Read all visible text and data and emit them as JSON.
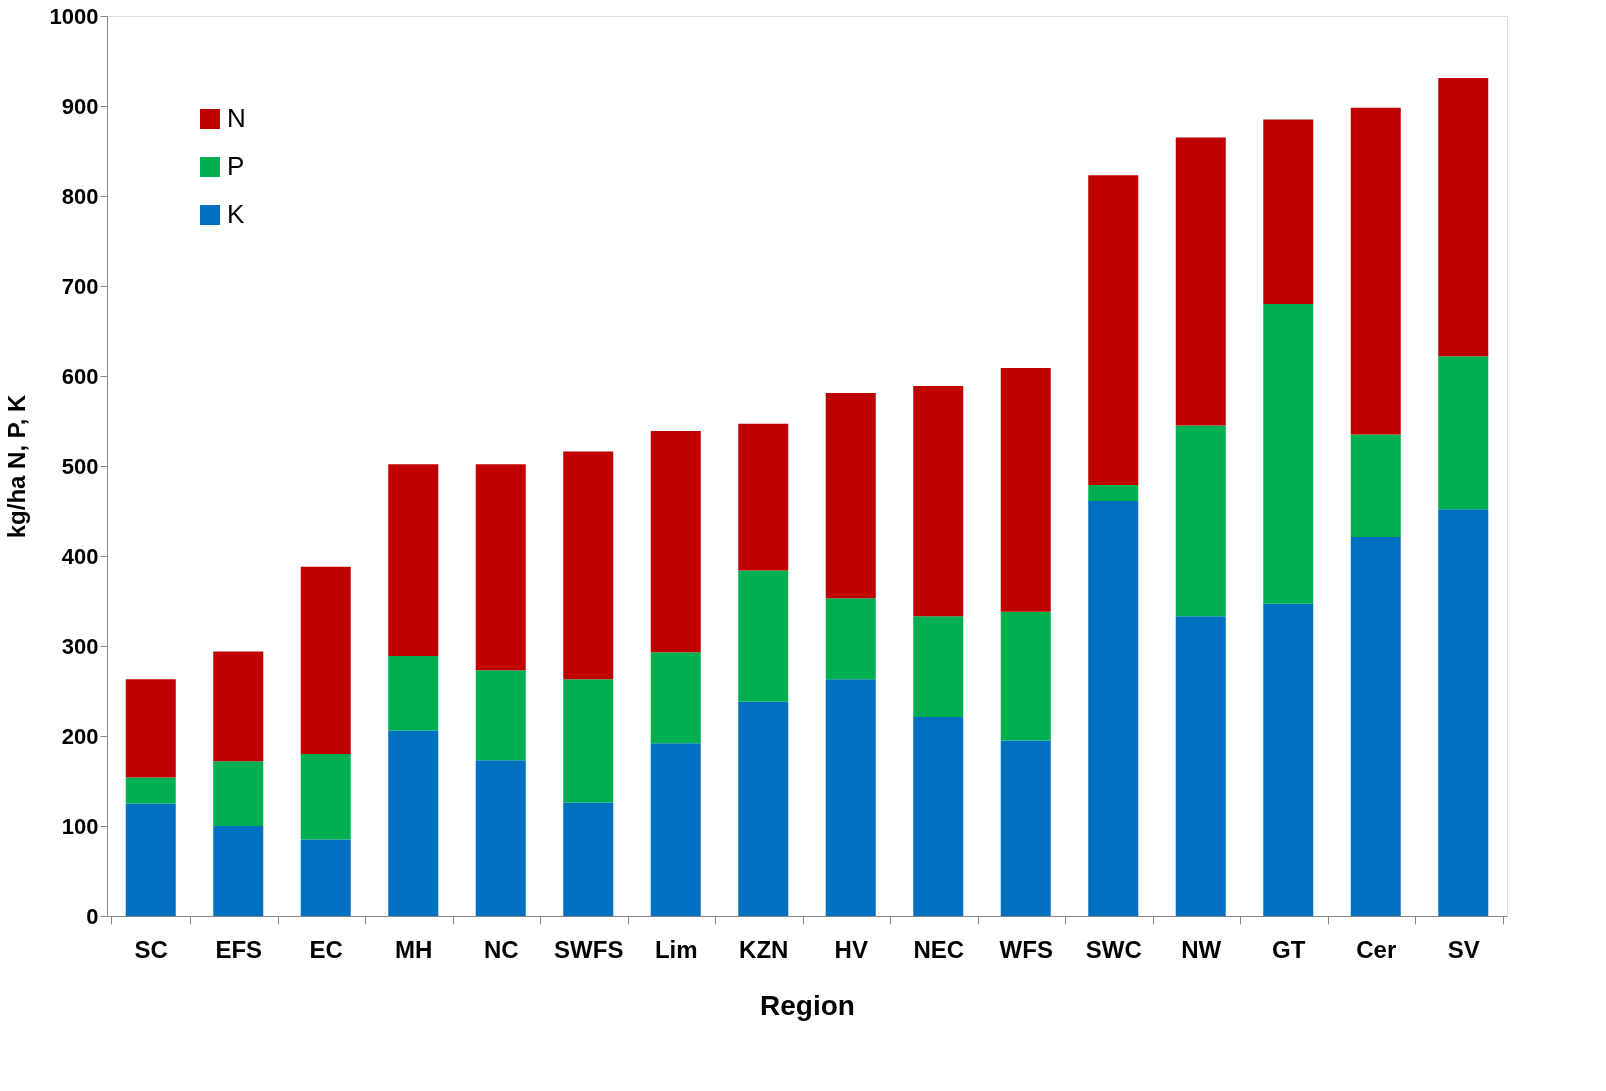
{
  "chart_data": {
    "type": "bar",
    "stacked": true,
    "xlabel": "Region",
    "ylabel": "kg/ha N, P, K",
    "categories": [
      "SC",
      "EFS",
      "EC",
      "MH",
      "NC",
      "SWFS",
      "Lim",
      "KZN",
      "HV",
      "NEC",
      "WFS",
      "SWC",
      "NW",
      "GT",
      "Cer",
      "SV"
    ],
    "series": [
      {
        "name": "K",
        "color": "#0070c0",
        "values": [
          125,
          100,
          85,
          206,
          173,
          126,
          192,
          238,
          263,
          221,
          195,
          461,
          333,
          347,
          421,
          452
        ]
      },
      {
        "name": "P",
        "color": "#00b050",
        "values": [
          29,
          72,
          95,
          83,
          100,
          137,
          101,
          146,
          90,
          112,
          143,
          18,
          212,
          333,
          114,
          170
        ]
      },
      {
        "name": "N",
        "color": "#c00000",
        "values": [
          109,
          122,
          208,
          213,
          229,
          253,
          246,
          163,
          228,
          256,
          271,
          344,
          320,
          205,
          363,
          309
        ]
      }
    ],
    "ylim": [
      0,
      1000
    ],
    "yticks": [
      0,
      100,
      200,
      300,
      400,
      500,
      600,
      700,
      800,
      900,
      1000
    ],
    "grid": false,
    "legend": "top left"
  }
}
